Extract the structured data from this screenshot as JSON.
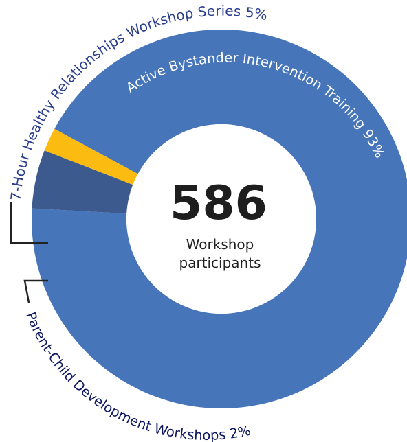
{
  "chart_data": {
    "type": "pie",
    "total": "586",
    "total_label_line1": "Workshop",
    "total_label_line2": "participants",
    "slices": [
      {
        "label": "Active Bystander Intervention Training 93%",
        "value": 93,
        "color": "#4775b9"
      },
      {
        "label": "7-Hour Healthy Relationships Workshop Series 5%",
        "value": 5,
        "color": "#3c5a8e"
      },
      {
        "label": "Parent-Child Development Workshops 2%",
        "value": 2,
        "color": "#fcbb11"
      }
    ]
  },
  "colors": {
    "outer_label_text": "#2a3f8c",
    "inner_label_text": "#ffffff",
    "leader_line": "#222222"
  }
}
